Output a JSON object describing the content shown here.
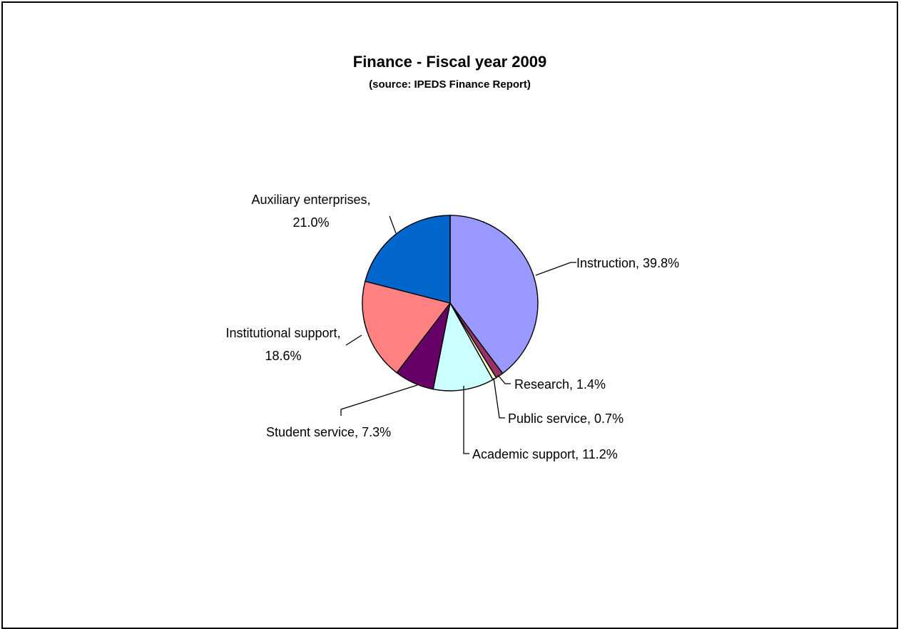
{
  "chart_data": {
    "type": "pie",
    "title": "Finance - Fiscal year 2009",
    "subtitle": "(source:  IPEDS Finance Report)",
    "slices": [
      {
        "label": "Instruction",
        "value": 39.8,
        "display": "Instruction, 39.8%",
        "color": "#9999ff"
      },
      {
        "label": "Research",
        "value": 1.4,
        "display": "Research, 1.4%",
        "color": "#993366"
      },
      {
        "label": "Public service",
        "value": 0.7,
        "display": "Public service, 0.7%",
        "color": "#ffffcc"
      },
      {
        "label": "Academic support",
        "value": 11.2,
        "display": "Academic support, 11.2%",
        "color": "#ccffff"
      },
      {
        "label": "Student service",
        "value": 7.3,
        "display": "Student service, 7.3%",
        "color": "#660066"
      },
      {
        "label": "Institutional support",
        "value": 18.6,
        "display_line1": "Institutional support,",
        "display_line2": "18.6%",
        "color": "#ff8080"
      },
      {
        "label": "Auxiliary enterprises",
        "value": 21.0,
        "display_line1": "Auxiliary enterprises,",
        "display_line2": "21.0%",
        "color": "#0066cc"
      }
    ]
  }
}
